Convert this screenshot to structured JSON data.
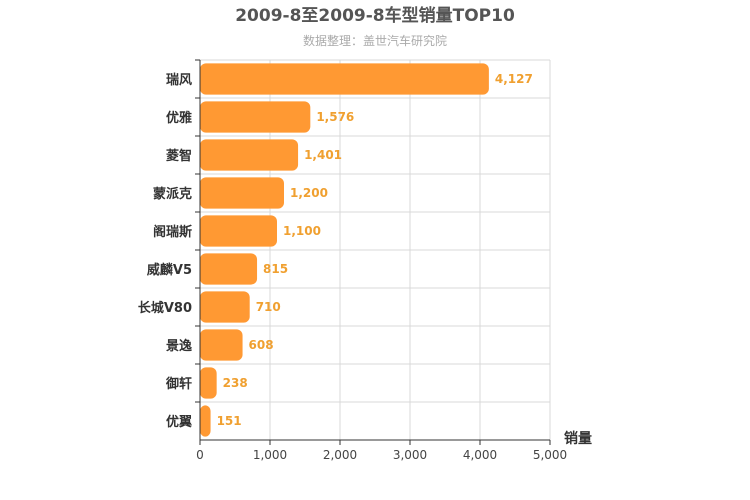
{
  "chart_data": {
    "type": "bar",
    "orientation": "horizontal",
    "title": "2009-8至2009-8车型销量TOP10",
    "subtitle": "数据整理：盖世汽车研究院",
    "xlabel": "销量",
    "ylabel": "",
    "categories": [
      "瑞风",
      "优雅",
      "菱智",
      "蒙派克",
      "阁瑞斯",
      "威麟V5",
      "长城V80",
      "景逸",
      "御轩",
      "优翼"
    ],
    "values": [
      4127,
      1576,
      1401,
      1200,
      1100,
      815,
      710,
      608,
      238,
      151
    ],
    "value_labels": [
      "4,127",
      "1,576",
      "1,401",
      "1,200",
      "1,100",
      "815",
      "710",
      "608",
      "238",
      "151"
    ],
    "xlim": [
      0,
      5000
    ],
    "xticks": [
      0,
      1000,
      2000,
      3000,
      4000,
      5000
    ],
    "xtick_labels": [
      "0",
      "1,000",
      "2,000",
      "3,000",
      "4,000",
      "5,000"
    ],
    "grid": true,
    "legend": "none",
    "colors": {
      "bar": "#ff9933",
      "value_label": "#f0a030",
      "grid": "#d8d8d8",
      "axis": "#333333"
    }
  }
}
